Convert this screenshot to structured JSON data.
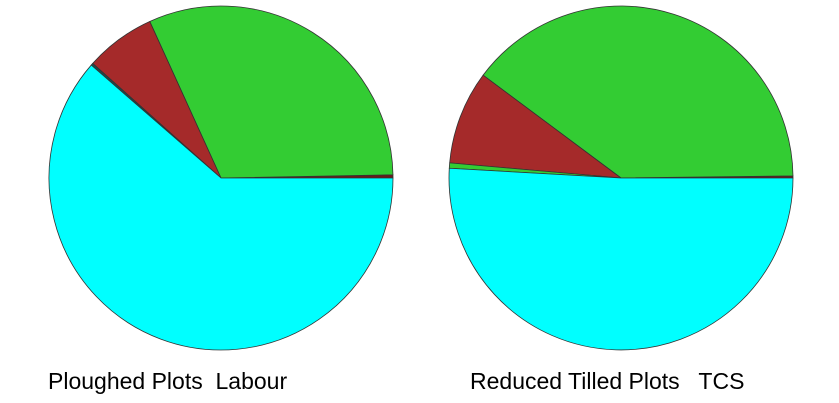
{
  "chart_data": [
    {
      "type": "pie",
      "title": "Ploughed Plots  Labour",
      "slices": [
        {
          "value": 0.3,
          "color": "#6a1a1a"
        },
        {
          "value": 31.5,
          "color": "#33cc33"
        },
        {
          "value": 6.6,
          "color": "#a52a2a"
        },
        {
          "value": 0.2,
          "color": "#1a4d4d"
        },
        {
          "value": 61.4,
          "color": "#00ffff"
        }
      ]
    },
    {
      "type": "pie",
      "title": "Reduced Tilled Plots   TCS",
      "slices": [
        {
          "value": 0.2,
          "color": "#6a1a1a"
        },
        {
          "value": 39.6,
          "color": "#33cc33"
        },
        {
          "value": 8.8,
          "color": "#a52a2a"
        },
        {
          "value": 0.5,
          "color": "#33cc33"
        },
        {
          "value": 50.9,
          "color": "#00ffff"
        }
      ]
    }
  ],
  "colors": {
    "outline": "#333333",
    "background": "#ffffff"
  }
}
